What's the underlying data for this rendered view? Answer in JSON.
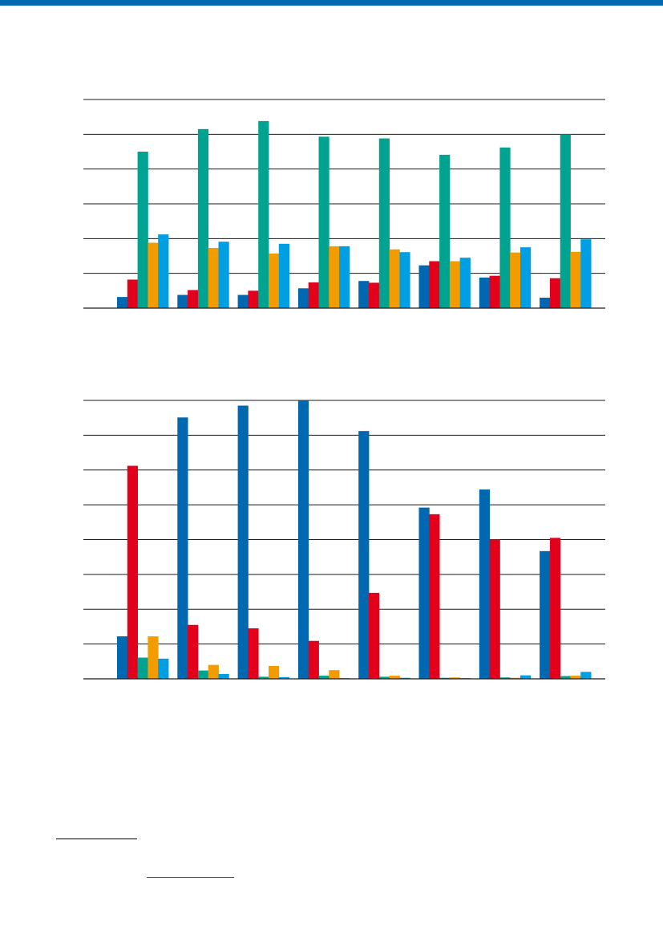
{
  "colors": {
    "page_bar": "#0067b1",
    "grid": "#1a1a1a",
    "series": [
      "#0067b1",
      "#e2001a",
      "#00a390",
      "#f39c00",
      "#009ee3"
    ]
  },
  "chart_data": [
    {
      "type": "bar",
      "title": "",
      "xlabel": "",
      "ylabel": "",
      "ylim": [
        0,
        6
      ],
      "grid": true,
      "legend": "none",
      "categories": [
        "",
        "",
        "",
        "",
        "",
        "",
        "",
        ""
      ],
      "series": [
        {
          "values": [
            0.32,
            0.38,
            0.38,
            0.57,
            0.78,
            1.23,
            0.88,
            0.3
          ]
        },
        {
          "values": [
            0.82,
            0.52,
            0.5,
            0.74,
            0.73,
            1.35,
            0.93,
            0.86
          ]
        },
        {
          "values": [
            4.5,
            5.15,
            5.38,
            4.93,
            4.88,
            4.41,
            4.62,
            5.0
          ]
        },
        {
          "values": [
            1.88,
            1.73,
            1.57,
            1.78,
            1.69,
            1.35,
            1.6,
            1.62
          ]
        },
        {
          "values": [
            2.12,
            1.91,
            1.85,
            1.78,
            1.61,
            1.45,
            1.75,
            1.98
          ]
        }
      ]
    },
    {
      "type": "bar",
      "title": "",
      "xlabel": "",
      "ylabel": "",
      "ylim": [
        0,
        8
      ],
      "grid": true,
      "legend": "none",
      "categories": [
        "",
        "",
        "",
        "",
        "",
        "",
        "",
        ""
      ],
      "series": [
        {
          "values": [
            1.22,
            7.51,
            7.85,
            8.0,
            7.12,
            4.92,
            5.44,
            3.67
          ]
        },
        {
          "values": [
            6.12,
            1.55,
            1.45,
            1.09,
            2.47,
            4.73,
            4.0,
            4.05
          ]
        },
        {
          "values": [
            0.61,
            0.24,
            0.06,
            0.09,
            0.06,
            0.03,
            0.04,
            0.08
          ]
        },
        {
          "values": [
            1.22,
            0.4,
            0.37,
            0.25,
            0.09,
            0.04,
            0.03,
            0.09
          ]
        },
        {
          "values": [
            0.58,
            0.14,
            0.05,
            0.02,
            0.03,
            0.02,
            0.1,
            0.2
          ]
        }
      ]
    }
  ]
}
